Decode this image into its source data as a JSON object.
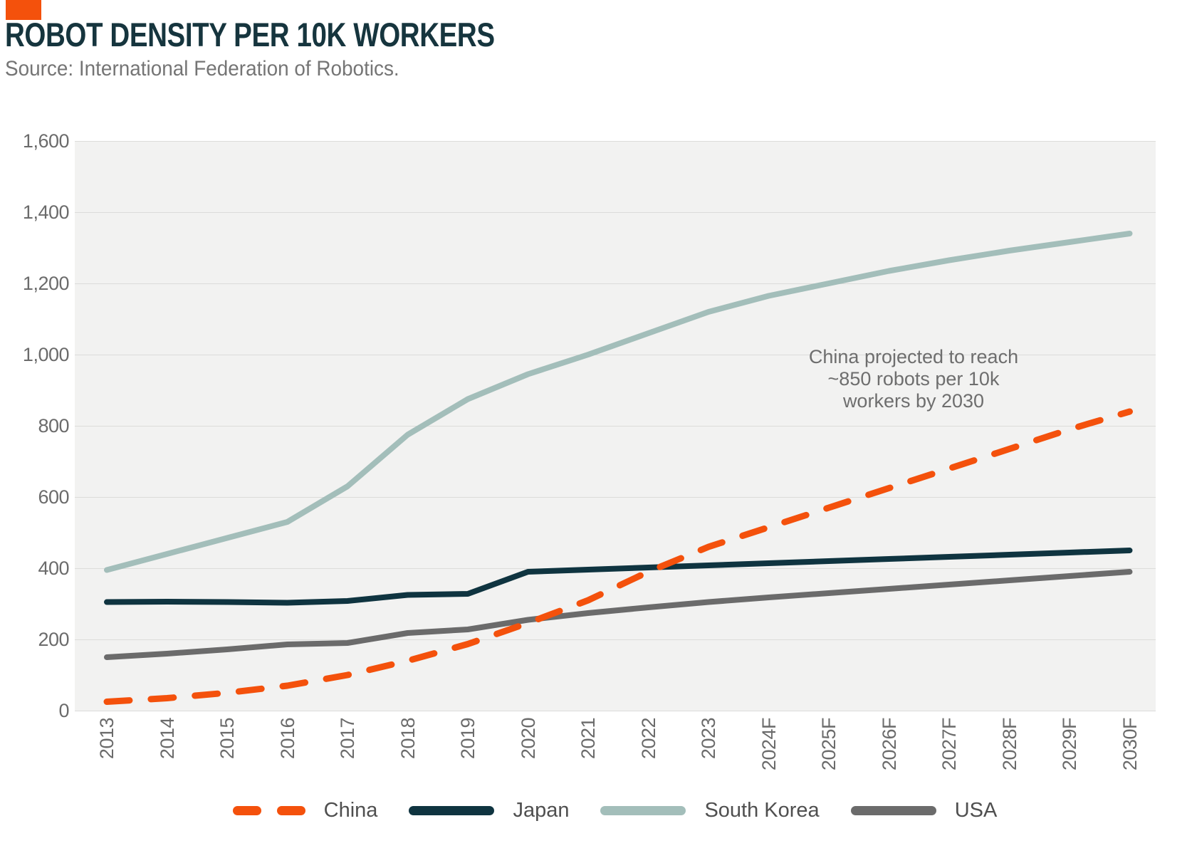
{
  "title": "ROBOT DENSITY PER 10K WORKERS",
  "source": "Source: International Federation of Robotics.",
  "colors": {
    "accent": "#F4510C",
    "title_text": "#16353E",
    "source_text": "#757575",
    "plot_bg": "#F2F2F1",
    "gridline": "#DCDCDA",
    "axis_label": "#6B6B6B",
    "legend_label": "#4F4F4F",
    "annotation_text": "#6E6E6E"
  },
  "chart_data": {
    "type": "line",
    "title": "ROBOT DENSITY PER 10K WORKERS",
    "xlabel": "",
    "ylabel": "",
    "ylim": [
      0,
      1600
    ],
    "ytick_step": 200,
    "ytick_labels": [
      "0",
      "200",
      "400",
      "600",
      "800",
      "1,000",
      "1,200",
      "1,400",
      "1,600"
    ],
    "grid": true,
    "legend_position": "bottom",
    "categories": [
      "2013",
      "2014",
      "2015",
      "2016",
      "2017",
      "2018",
      "2019",
      "2020",
      "2021",
      "2022",
      "2023",
      "2024F",
      "2025F",
      "2026F",
      "2027F",
      "2028F",
      "2029F",
      "2030F"
    ],
    "series": [
      {
        "name": "China",
        "color": "#F4510C",
        "dashed": true,
        "values": [
          25,
          35,
          50,
          70,
          100,
          140,
          187,
          246,
          310,
          390,
          460,
          515,
          570,
          625,
          680,
          735,
          790,
          840
        ]
      },
      {
        "name": "Japan",
        "color": "#0F3440",
        "dashed": false,
        "values": [
          305,
          306,
          305,
          303,
          308,
          325,
          328,
          390,
          396,
          402,
          408,
          414,
          420,
          426,
          432,
          438,
          444,
          450
        ]
      },
      {
        "name": "South Korea",
        "color": "#A3BEBA",
        "dashed": false,
        "values": [
          395,
          440,
          485,
          530,
          630,
          775,
          875,
          945,
          1000,
          1060,
          1120,
          1165,
          1200,
          1235,
          1265,
          1292,
          1316,
          1340
        ]
      },
      {
        "name": "USA",
        "color": "#6B6B6B",
        "dashed": false,
        "values": [
          150,
          160,
          172,
          186,
          190,
          218,
          228,
          255,
          274,
          290,
          305,
          318,
          330,
          342,
          354,
          366,
          378,
          390
        ]
      }
    ],
    "annotation": {
      "line1": "China projected to reach",
      "line2": "~850 robots per 10k",
      "line3": "workers by 2030"
    }
  }
}
